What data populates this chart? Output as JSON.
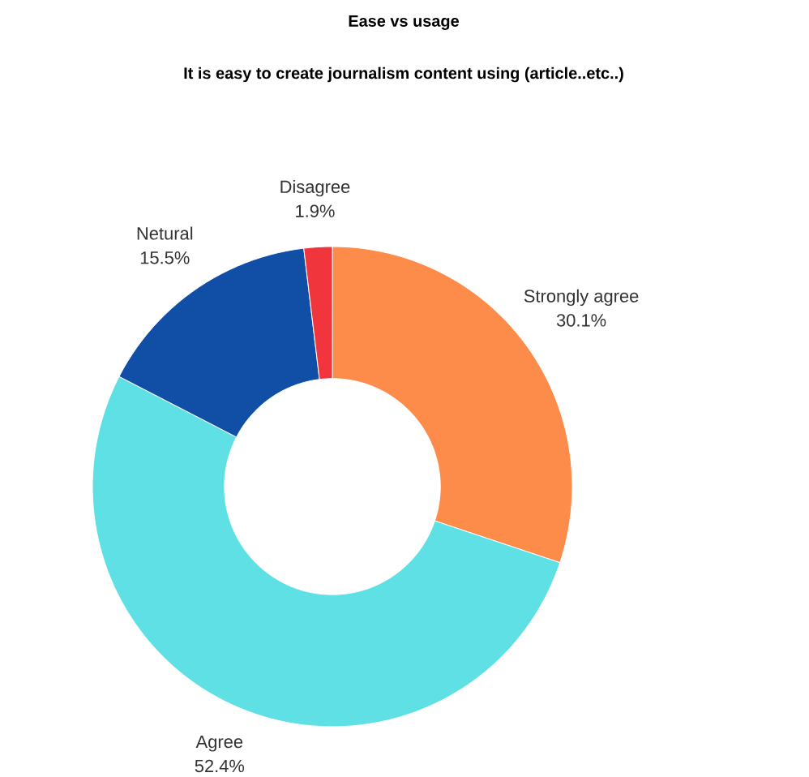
{
  "chart_data": {
    "type": "donut",
    "title": "Ease vs usage",
    "subtitle": "It is easy to create journalism content using (article..etc..)",
    "categories": [
      "Strongly agree",
      "Agree",
      "Netural",
      "Disagree"
    ],
    "values": [
      30.1,
      52.4,
      15.5,
      1.9
    ],
    "value_labels": [
      "30.1%",
      "52.4%",
      "15.5%",
      "1.9%"
    ],
    "colors": [
      "#fd8c4b",
      "#5fe0e4",
      "#114ea6",
      "#f0353d"
    ]
  }
}
